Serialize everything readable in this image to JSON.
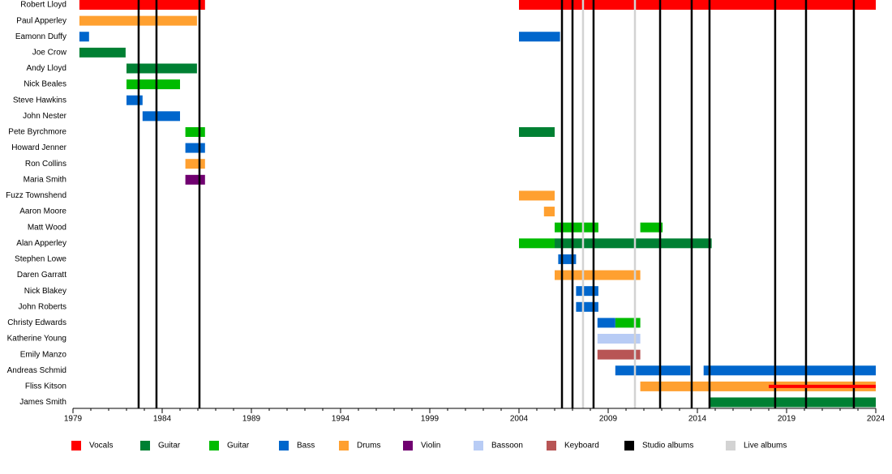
{
  "chart_data": {
    "type": "timeline",
    "categories": [
      "Robert Lloyd",
      "Paul Apperley",
      "Eamonn Duffy",
      "Joe Crow",
      "Andy Lloyd",
      "Nick Beales",
      "Steve Hawkins",
      "John Nester",
      "Pete Byrchmore",
      "Howard Jenner",
      "Ron Collins",
      "Maria Smith",
      "Fuzz Townshend",
      "Aaron Moore",
      "Matt Wood",
      "Alan Apperley",
      "Stephen Lowe",
      "Daren Garratt",
      "Nick Blakey",
      "John Roberts",
      "Christy Edwards",
      "Katherine Young",
      "Emily Manzo",
      "Andreas Schmid",
      "Fliss Kitson",
      "James Smith"
    ],
    "series": [
      {
        "name": "Vocals",
        "color": "#ff0000",
        "values": [
          [
            [
              1979.36,
              1986.4
            ],
            [
              2004,
              2024
            ]
          ],
          null,
          null,
          null,
          null,
          null,
          null,
          null,
          null,
          null,
          null,
          null,
          null,
          null,
          null,
          null,
          null,
          null,
          null,
          null,
          null,
          null,
          null,
          null,
          [
            [
              2018,
              2024
            ]
          ],
          null
        ]
      },
      {
        "name": "Guitar",
        "color": "#008033",
        "values": [
          null,
          null,
          null,
          [
            [
              1979.36,
              1981.95
            ]
          ],
          [
            [
              1982,
              1985.95
            ]
          ],
          null,
          null,
          null,
          [
            [
              2004,
              2006
            ]
          ],
          null,
          null,
          null,
          null,
          null,
          null,
          [
            [
              2006,
              2014.8
            ]
          ],
          null,
          null,
          null,
          null,
          null,
          null,
          null,
          null,
          null,
          [
            [
              2014.7,
              2024
            ]
          ]
        ]
      },
      {
        "name": "Guitar",
        "color": "#00bb00",
        "values": [
          null,
          null,
          null,
          null,
          null,
          [
            [
              1982,
              1985
            ]
          ],
          null,
          null,
          [
            [
              1985.3,
              1986.4
            ]
          ],
          null,
          null,
          null,
          null,
          null,
          [
            [
              2006,
              2008.45
            ],
            [
              2010.8,
              2012.05
            ]
          ],
          [
            [
              2004,
              2006
            ]
          ],
          null,
          null,
          null,
          null,
          [
            [
              2009.4,
              2010.8
            ]
          ],
          null,
          null,
          null,
          null,
          null
        ]
      },
      {
        "name": "Bass",
        "color": "#0066cc",
        "values": [
          null,
          null,
          [
            [
              1979.36,
              1979.9
            ],
            [
              2004,
              2006.3
            ]
          ],
          null,
          null,
          null,
          [
            [
              1982,
              1982.9
            ]
          ],
          [
            [
              1982.9,
              1985
            ]
          ],
          null,
          [
            [
              1985.3,
              1986.4
            ]
          ],
          null,
          null,
          null,
          null,
          null,
          null,
          [
            [
              2006.2,
              2007.2
            ]
          ],
          null,
          [
            [
              2007.2,
              2008.45
            ]
          ],
          [
            [
              2007.2,
              2008.45
            ]
          ],
          [
            [
              2008.4,
              2009.4
            ]
          ],
          null,
          null,
          [
            [
              2009.4,
              2013.6
            ],
            [
              2014.35,
              2024
            ]
          ],
          null,
          null
        ]
      },
      {
        "name": "Drums",
        "color": "#ffa030",
        "values": [
          null,
          [
            [
              1979.36,
              1985.95
            ]
          ],
          null,
          null,
          null,
          null,
          null,
          null,
          null,
          null,
          [
            [
              1985.3,
              1986.4
            ]
          ],
          null,
          [
            [
              2004,
              2006
            ]
          ],
          [
            [
              2005.4,
              2006
            ]
          ],
          null,
          null,
          null,
          [
            [
              2006,
              2010.8
            ]
          ],
          null,
          null,
          null,
          null,
          null,
          null,
          [
            [
              2010.8,
              2024
            ]
          ],
          null
        ]
      },
      {
        "name": "Violin",
        "color": "#700070",
        "values": [
          null,
          null,
          null,
          null,
          null,
          null,
          null,
          null,
          null,
          null,
          null,
          [
            [
              1985.3,
              1986.4
            ]
          ],
          null,
          null,
          null,
          null,
          null,
          null,
          null,
          null,
          null,
          null,
          null,
          null,
          null,
          null
        ]
      },
      {
        "name": "Bassoon",
        "color": "#b8ccf5",
        "values": [
          null,
          null,
          null,
          null,
          null,
          null,
          null,
          null,
          null,
          null,
          null,
          null,
          null,
          null,
          null,
          null,
          null,
          null,
          null,
          null,
          null,
          [
            [
              2008.4,
              2010.8
            ]
          ],
          null,
          null,
          null,
          null
        ]
      },
      {
        "name": "Keyboard",
        "color": "#b85555",
        "values": [
          null,
          null,
          null,
          null,
          null,
          null,
          null,
          null,
          null,
          null,
          null,
          null,
          null,
          null,
          null,
          null,
          null,
          null,
          null,
          null,
          null,
          null,
          [
            [
              2008.4,
              2010.8
            ]
          ],
          null,
          null,
          null
        ]
      }
    ],
    "markers": [
      {
        "name": "Studio albums",
        "color": "#000000",
        "x": [
          1982.68,
          1983.68,
          1986.09,
          2006.41,
          2007.0,
          2008.18,
          2011.91,
          2013.68,
          2014.68,
          2018.36,
          2020.09,
          2022.77
        ]
      },
      {
        "name": "Live albums",
        "color": "#d3d3d3",
        "x": [
          2007.59,
          2010.5
        ]
      }
    ],
    "xlim": [
      1979,
      2024
    ],
    "xticks": [
      1979,
      1984,
      1989,
      1994,
      1999,
      2004,
      2009,
      2014,
      2019,
      2024
    ]
  }
}
